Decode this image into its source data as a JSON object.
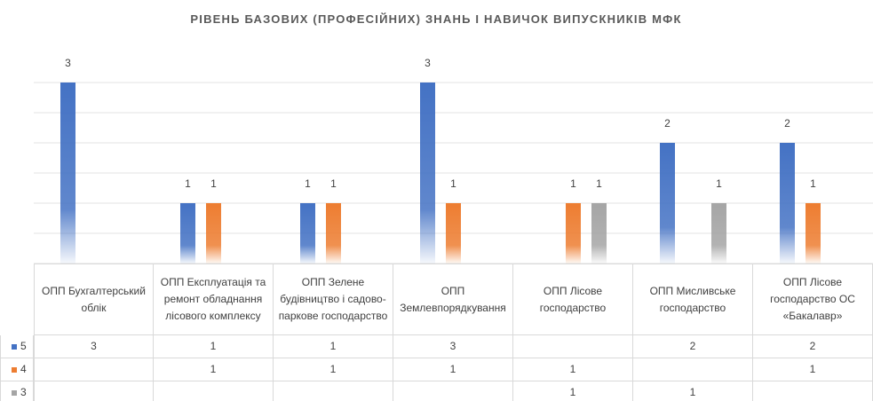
{
  "chart_data": {
    "type": "bar",
    "title": "РІВЕНЬ БАЗОВИХ (ПРОФЕСІЙНИХ) ЗНАНЬ І НАВИЧОК ВИПУСКНИКІВ МФК",
    "categories": [
      "ОПП Бухгалтерський облік",
      "ОПП Експлуатація та ремонт обладнання лісового комплексу",
      "ОПП Зелене будівництво і садово-паркове господарство",
      "ОПП Землевпорядкування",
      "ОПП Лісове господарство",
      "ОПП Мисливське господарство",
      "ОПП Лісове господарство ОС «Бакалавр»"
    ],
    "series": [
      {
        "name": "5",
        "color": "#4472c4",
        "values": [
          3,
          1,
          1,
          3,
          null,
          2,
          2
        ]
      },
      {
        "name": "4",
        "color": "#ed7d31",
        "values": [
          null,
          1,
          1,
          1,
          1,
          null,
          1
        ]
      },
      {
        "name": "3",
        "color": "#a5a5a5",
        "values": [
          null,
          null,
          null,
          null,
          1,
          1,
          null
        ]
      }
    ],
    "ylim": [
      0,
      3
    ],
    "yticks": [
      0,
      0.5,
      1,
      1.5,
      2,
      2.5,
      3
    ],
    "grid": true,
    "data_table": true
  }
}
